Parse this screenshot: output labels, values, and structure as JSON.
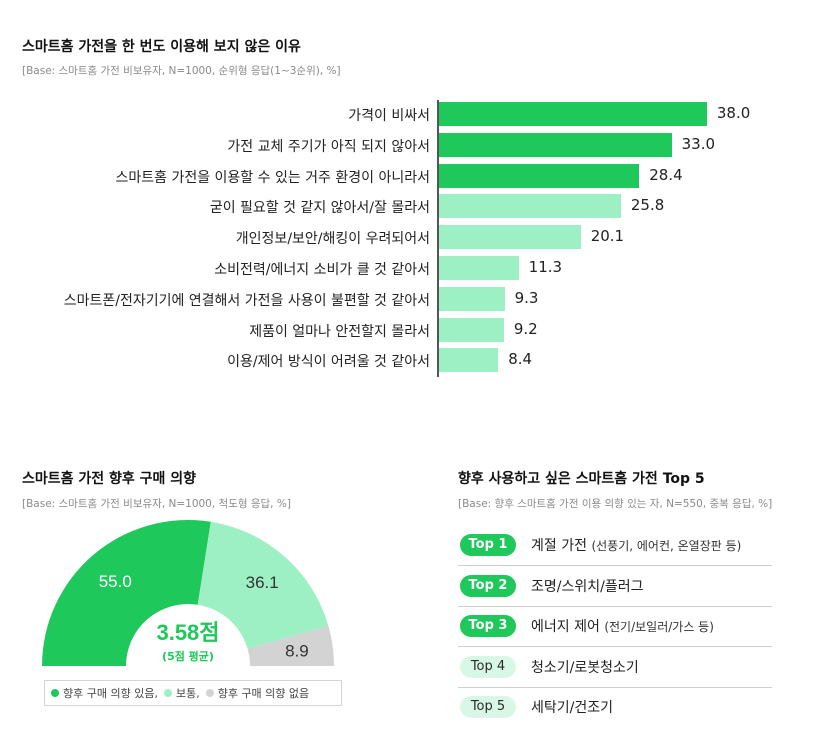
{
  "colors": {
    "dark_green": "#1ec85a",
    "light_green": "#9df0c3",
    "gray": "#d3d3d3",
    "white": "#ffffff"
  },
  "chart_data": [
    {
      "type": "bar",
      "orientation": "horizontal",
      "title": "스마트홈 가전을 한 번도 이용해 보지 않은 이유",
      "subtitle": "[Base: 스마트홈 가전 비보유자, N=1000, 순위형 응답(1~3순위), %]",
      "categories": [
        "가격이 비싸서",
        "가전 교체 주기가 아직 되지 않아서",
        "스마트홈 가전을 이용할 수 있는 거주 환경이 아니라서",
        "굳이 필요할 것 같지 않아서/잘 몰라서",
        "개인정보/보안/해킹이 우려되어서",
        "소비전력/에너지 소비가 클 것 같아서",
        "스마트폰/전자기기에 연결해서 가전을 사용이 불편할 것 같아서",
        "제품이 얼마나 안전할지 몰라서",
        "이용/제어 방식이 어려울 것 같아서"
      ],
      "values": [
        38.0,
        33.0,
        28.4,
        25.8,
        20.1,
        11.3,
        9.3,
        9.2,
        8.4
      ],
      "value_labels": [
        "38.0",
        "33.0",
        "28.4",
        "25.8",
        "20.1",
        "11.3",
        "9.3",
        "9.2",
        "8.4"
      ],
      "highlight": [
        true,
        true,
        true,
        false,
        false,
        false,
        false,
        false,
        false
      ],
      "xlim": [
        0,
        40
      ]
    },
    {
      "type": "pie",
      "shape": "semicircle-donut",
      "title": "스마트홈 가전 향후 구매 의향",
      "subtitle": "[Base: 스마트홈 가전 비보유자, N=1000, 척도형 응답, %]",
      "categories": [
        "향후 구매 의향 있음",
        "보통",
        "향후 구매 의향 없음"
      ],
      "values": [
        55.0,
        36.1,
        8.9
      ],
      "value_labels": [
        "55.0",
        "36.1",
        "8.9"
      ],
      "center_value": "3.58점",
      "center_note": "(5점 평균)",
      "legend": {
        "item1": "향후 구매 의향 있음,",
        "item2": "보통,",
        "item3": "향후 구매 의향 없음"
      }
    },
    {
      "type": "table",
      "title": "향후 사용하고 싶은 스마트홈 가전 Top 5",
      "subtitle": "[Base: 향후 스마트홈 가전 이용 의향 있는 자, N=550, 중복 응답, %]",
      "rows": [
        {
          "rank": "Top 1",
          "item": "계절 가전",
          "detail": "(선풍기, 에어컨, 온열장판 등)"
        },
        {
          "rank": "Top 2",
          "item": "조명/스위치/플러그",
          "detail": ""
        },
        {
          "rank": "Top 3",
          "item": "에너지 제어",
          "detail": "(전기/보일러/가스 등)"
        },
        {
          "rank": "Top 4",
          "item": "청소기/로봇청소기",
          "detail": ""
        },
        {
          "rank": "Top 5",
          "item": "세탁기/건조기",
          "detail": ""
        }
      ]
    }
  ]
}
